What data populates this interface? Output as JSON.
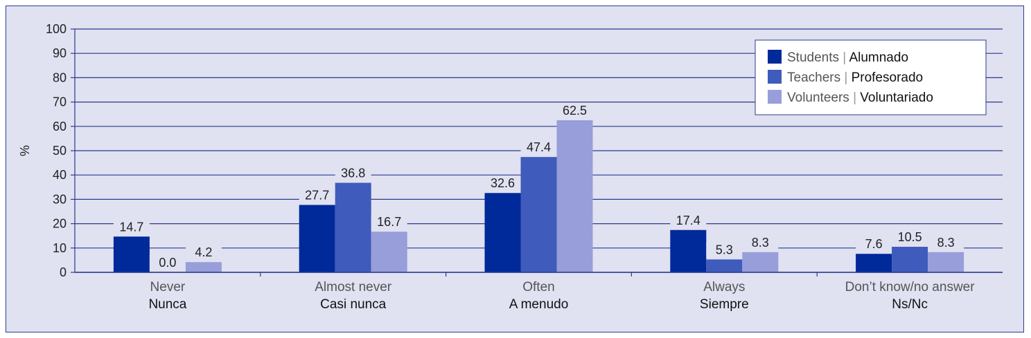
{
  "chart_data": {
    "type": "bar",
    "ylabel": "%",
    "ylim": [
      0,
      100
    ],
    "yticks": [
      0,
      10,
      20,
      30,
      40,
      50,
      60,
      70,
      80,
      90,
      100
    ],
    "grid": true,
    "legend_position": "top-right",
    "categories": [
      {
        "en": "Never",
        "es": "Nunca"
      },
      {
        "en": "Almost never",
        "es": "Casi nunca"
      },
      {
        "en": "Often",
        "es": "A menudo"
      },
      {
        "en": "Always",
        "es": "Siempre"
      },
      {
        "en": "Don’t know/no answer",
        "es": "Ns/Nc"
      }
    ],
    "series": [
      {
        "name_en": "Students",
        "name_es": "Alumnado",
        "color": "#00299a",
        "values": [
          14.7,
          27.7,
          32.6,
          17.4,
          7.6
        ],
        "labels": [
          "14.7",
          "27.7",
          "32.6",
          "17.4",
          "7.6"
        ]
      },
      {
        "name_en": "Teachers",
        "name_es": "Profesorado",
        "color": "#3f5bbb",
        "values": [
          0.0,
          36.8,
          47.4,
          5.3,
          10.5
        ],
        "labels": [
          "0.0",
          "36.8",
          "47.4",
          "5.3",
          "10.5"
        ]
      },
      {
        "name_en": "Volunteers",
        "name_es": "Voluntariado",
        "color": "#979ed9",
        "values": [
          4.2,
          16.7,
          62.5,
          8.3,
          8.3
        ],
        "labels": [
          "4.2",
          "16.7",
          "62.5",
          "8.3",
          "8.3"
        ]
      }
    ],
    "legend_separator": "|"
  }
}
